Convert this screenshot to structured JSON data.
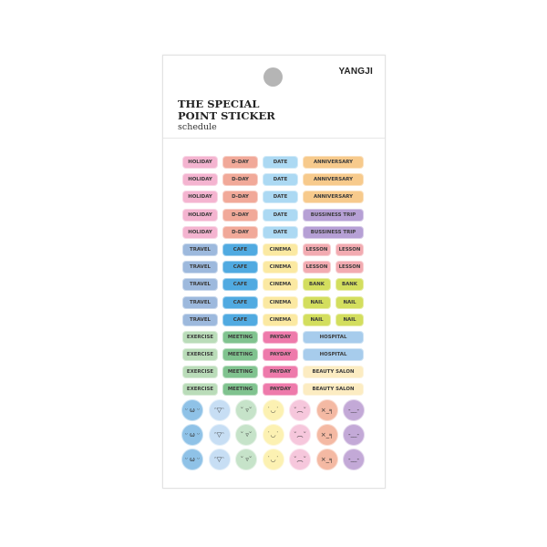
{
  "brand": "YANGJI",
  "title_line1": "THE SPECIAL",
  "title_line2": "POINT STICKER",
  "subtitle": "schedule",
  "colors": {
    "HOLIDAY": "#f4b4d0",
    "D-DAY": "#f1a999",
    "DATE": "#acd9f3",
    "ANNIVERSARY": "#f7ca8c",
    "BUSSINESS TRIP": "#b6a0d5",
    "TRAVEL": "#9db9dd",
    "CAFE": "#50aae1",
    "CINEMA": "#fbe9a2",
    "LESSON": "#f2abb1",
    "BANK": "#d3de5e",
    "NAIL": "#d3de5e",
    "EXERCISE": "#badcb9",
    "MEETING": "#80c38f",
    "PAYDAY": "#ee7aab",
    "HOSPITAL": "#a7ccec",
    "BEAUTY SALON": "#fcecc2"
  },
  "rows": [
    [
      "HOLIDAY",
      "D-DAY",
      "DATE",
      "ANNIVERSARY"
    ],
    [
      "HOLIDAY",
      "D-DAY",
      "DATE",
      "ANNIVERSARY"
    ],
    [
      "HOLIDAY",
      "D-DAY",
      "DATE",
      "ANNIVERSARY"
    ],
    [
      "HOLIDAY",
      "D-DAY",
      "DATE",
      "BUSSINESS TRIP"
    ],
    [
      "HOLIDAY",
      "D-DAY",
      "DATE",
      "BUSSINESS TRIP"
    ],
    [
      "TRAVEL",
      "CAFE",
      "CINEMA",
      "LESSON",
      "LESSON"
    ],
    [
      "TRAVEL",
      "CAFE",
      "CINEMA",
      "LESSON",
      "LESSON"
    ],
    [
      "TRAVEL",
      "CAFE",
      "CINEMA",
      "BANK",
      "BANK"
    ],
    [
      "TRAVEL",
      "CAFE",
      "CINEMA",
      "NAIL",
      "NAIL"
    ],
    [
      "TRAVEL",
      "CAFE",
      "CINEMA",
      "NAIL",
      "NAIL"
    ],
    [
      "EXERCISE",
      "MEETING",
      "PAYDAY",
      "HOSPITAL"
    ],
    [
      "EXERCISE",
      "MEETING",
      "PAYDAY",
      "HOSPITAL"
    ],
    [
      "EXERCISE",
      "MEETING",
      "PAYDAY",
      "BEAUTY SALON"
    ],
    [
      "EXERCISE",
      "MEETING",
      "PAYDAY",
      "BEAUTY SALON"
    ]
  ],
  "faces": [
    {
      "icon": "smug-face-icon",
      "color": "#8fc2e7",
      "glyph": "ᵕ ω ᵕ"
    },
    {
      "icon": "grin-tongue-face-icon",
      "color": "#c7def4",
      "glyph": "ᵔ▽ᵔ"
    },
    {
      "icon": "tongue-face-icon",
      "color": "#c6e3c9",
      "glyph": "˘ ▿˘"
    },
    {
      "icon": "smile-face-icon",
      "color": "#fcf1b2",
      "glyph": "˙◡˙"
    },
    {
      "icon": "sad-face-icon",
      "color": "#f6c7dc",
      "glyph": "˘︵˘"
    },
    {
      "icon": "annoyed-face-icon",
      "color": "#f4b9a3",
      "glyph": "×_╕"
    },
    {
      "icon": "sweat-face-icon",
      "color": "#c3a9d7",
      "glyph": "-﹏-"
    }
  ],
  "face_rows": 3
}
